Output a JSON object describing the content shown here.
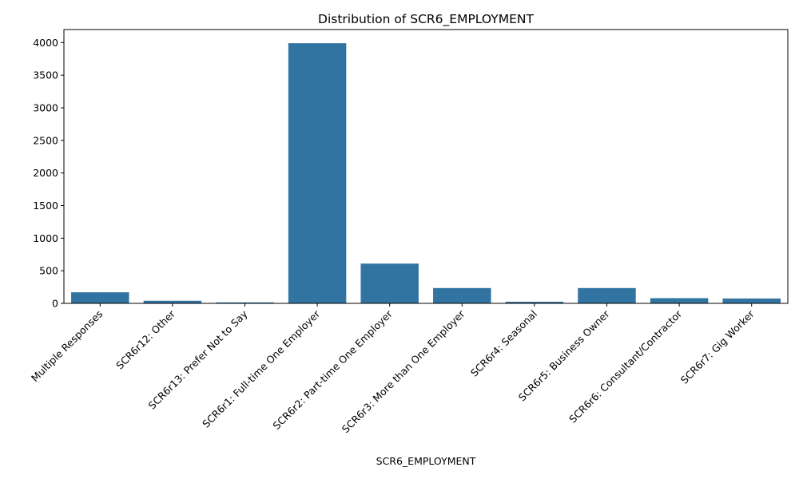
{
  "chart_data": {
    "type": "bar",
    "title": "Distribution of SCR6_EMPLOYMENT",
    "xlabel": "SCR6_EMPLOYMENT",
    "ylabel": "",
    "categories": [
      "Multiple Responses",
      "SCR6r12: Other",
      "SCR6r13: Prefer Not to Say",
      "SCR6r1: Full-time One Employer",
      "SCR6r2: Part-time One Employer",
      "SCR6r3: More than One Employer",
      "SCR6r4: Seasonal",
      "SCR6r5: Business Owner",
      "SCR6r6: Consultant/Contractor",
      "SCR6r7: Gig Worker"
    ],
    "values": [
      170,
      40,
      15,
      3990,
      610,
      235,
      25,
      235,
      80,
      75
    ],
    "ylim": [
      0,
      4200
    ],
    "yticks": [
      0,
      500,
      1000,
      1500,
      2000,
      2500,
      3000,
      3500,
      4000
    ],
    "bar_color": "#3274a1",
    "grid": false,
    "legend": "none"
  }
}
